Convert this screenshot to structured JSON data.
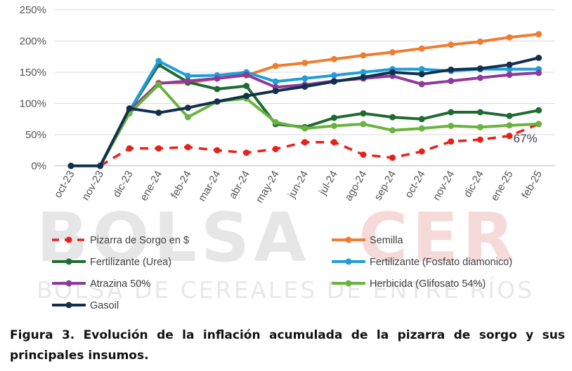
{
  "watermark": {
    "main_left": "BOLSA",
    "main_right": "CER",
    "sub": "BOLSA DE CEREALES DE ENTRE RÍOS",
    "color_left": "#e6e6e6",
    "color_right": "#f6dada",
    "color_sub": "#e8e8e8"
  },
  "caption": "Figura 3. Evolución de la inflación acumulada de la pizarra de sorgo y sus principales insumos.",
  "chart_data": {
    "type": "line",
    "title": "",
    "xlabel": "",
    "ylabel": "",
    "categories": [
      "oct-23",
      "nov-23",
      "dic-23",
      "ene-24",
      "feb-24",
      "mar-24",
      "abr-24",
      "may-24",
      "jun-24",
      "jul-24",
      "ago-24",
      "sep-24",
      "oct-24",
      "nov-24",
      "dic-24",
      "ene-25",
      "feb-25"
    ],
    "ylim": [
      0,
      250
    ],
    "yticks": [
      0,
      50,
      100,
      150,
      200,
      250
    ],
    "ytick_labels": [
      "0%",
      "50%",
      "100%",
      "150%",
      "200%",
      "250%"
    ],
    "grid": true,
    "legend_position": "bottom",
    "series": [
      {
        "name": "Pizarra de Sorgo en $",
        "color": "#e8201a",
        "style": "dashed",
        "values": [
          0,
          0,
          28,
          28,
          30,
          25,
          21,
          27,
          38,
          38,
          18,
          13,
          23,
          39,
          42,
          48,
          67
        ]
      },
      {
        "name": "Semilla",
        "color": "#ed7d31",
        "style": "solid",
        "values": [
          0,
          0,
          88,
          133,
          133,
          140,
          145,
          160,
          165,
          171,
          177,
          182,
          188,
          194,
          199,
          206,
          211
        ]
      },
      {
        "name": "Fertilizante (Urea)",
        "color": "#1e6b30",
        "style": "solid",
        "values": [
          0,
          0,
          88,
          162,
          134,
          123,
          128,
          67,
          62,
          77,
          84,
          78,
          75,
          86,
          86,
          80,
          89
        ]
      },
      {
        "name": "Fertilizante (Fosfato diamonico)",
        "color": "#1f9ed8",
        "style": "solid",
        "values": [
          0,
          0,
          88,
          168,
          144,
          145,
          150,
          135,
          140,
          145,
          150,
          155,
          155,
          152,
          155,
          155,
          155
        ]
      },
      {
        "name": "Atrazina 50%",
        "color": "#8e3a9a",
        "style": "solid",
        "values": [
          0,
          0,
          88,
          132,
          136,
          140,
          146,
          126,
          130,
          136,
          140,
          144,
          131,
          136,
          141,
          146,
          149
        ]
      },
      {
        "name": "Herbicida (Glifosato 54%)",
        "color": "#6ab33e",
        "style": "solid",
        "values": [
          0,
          0,
          84,
          130,
          78,
          103,
          108,
          70,
          60,
          64,
          67,
          57,
          60,
          64,
          62,
          65,
          67
        ]
      },
      {
        "name": "Gasoil",
        "color": "#10304e",
        "style": "solid",
        "values": [
          0,
          0,
          92,
          85,
          93,
          103,
          112,
          120,
          127,
          135,
          142,
          150,
          147,
          154,
          156,
          162,
          173
        ]
      }
    ],
    "annotations": [
      {
        "text": "67%",
        "x": "feb-25",
        "y": 67
      }
    ]
  }
}
